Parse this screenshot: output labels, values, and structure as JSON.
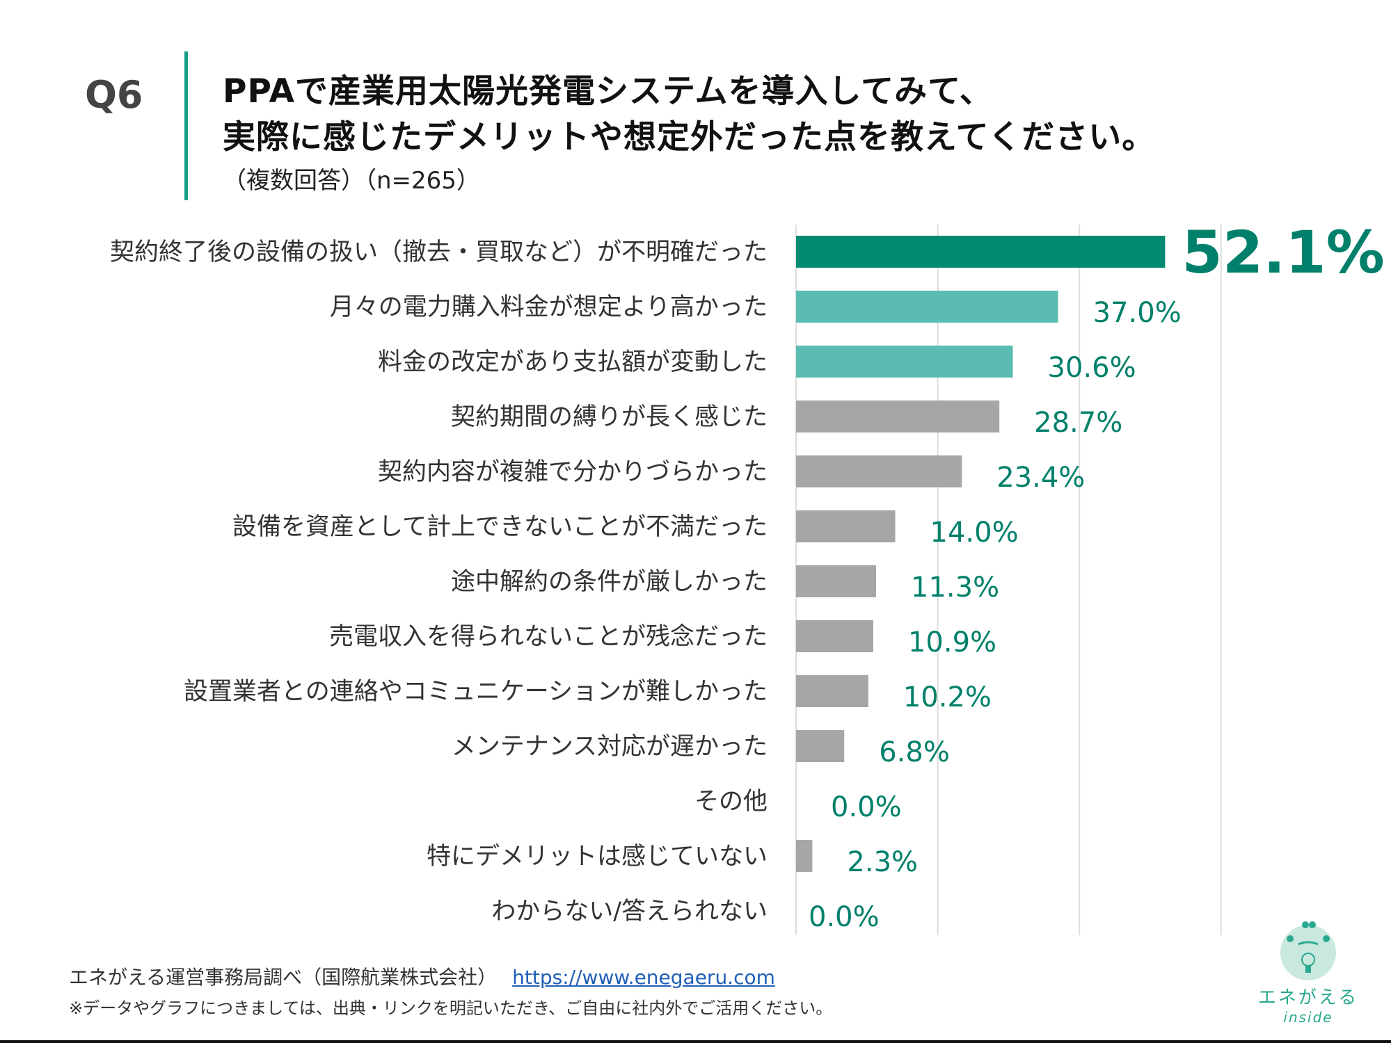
{
  "header": {
    "qnum": "Q6",
    "title_line1": "PPAで産業用太陽光発電システムを導入してみて、",
    "title_line2": "実際に感じたデメリットや想定外だった点を教えてください。",
    "subtitle": "（複数回答）（n=265）"
  },
  "chart_data": {
    "type": "bar",
    "orientation": "horizontal",
    "categories": [
      "契約終了後の設備の扱い（撤去・買取など）が不明確だった",
      "月々の電力購入料金が想定より高かった",
      "料金の改定があり支払額が変動した",
      "契約期間の縛りが長く感じた",
      "契約内容が複雑で分かりづらかった",
      "設備を資産として計上できないことが不満だった",
      "途中解約の条件が厳しかった",
      "売電収入を得られないことが残念だった",
      "設置業者との連絡やコミュニケーションが難しかった",
      "メンテナンス対応が遅かった",
      "その他",
      "特にデメリットは感じていない",
      "わからない/答えられない"
    ],
    "values": [
      52.1,
      37.0,
      30.6,
      28.7,
      23.4,
      14.0,
      11.3,
      10.9,
      10.2,
      6.8,
      0.0,
      2.3,
      0.0
    ],
    "value_labels": [
      "52.1%",
      "37.0%",
      "30.6%",
      "28.7%",
      "23.4%",
      "14.0%",
      "11.3%",
      "10.9%",
      "10.2%",
      "6.8%",
      "0.0%",
      "2.3%",
      "0.0%"
    ],
    "xlim": [
      0,
      60
    ],
    "grid": true,
    "gridlines_at": [
      20,
      40,
      60
    ],
    "colors": {
      "top1": "#008a70",
      "top2_3": "#5bbdb1",
      "rest": "#a6a6a6",
      "value_text": "#00806a",
      "grid": "#dddddd"
    }
  },
  "footer": {
    "source": "エネがえる運営事務局調べ（国際航業株式会社）",
    "link": "https://www.enegaeru.com",
    "note": "※データやグラフにつきましては、出典・リンクを明記いただき、ご自由に社内外でご活用ください。"
  },
  "logo": {
    "text": "エネがえる",
    "sub": "inside",
    "icon": "frog-bulb-logo"
  }
}
